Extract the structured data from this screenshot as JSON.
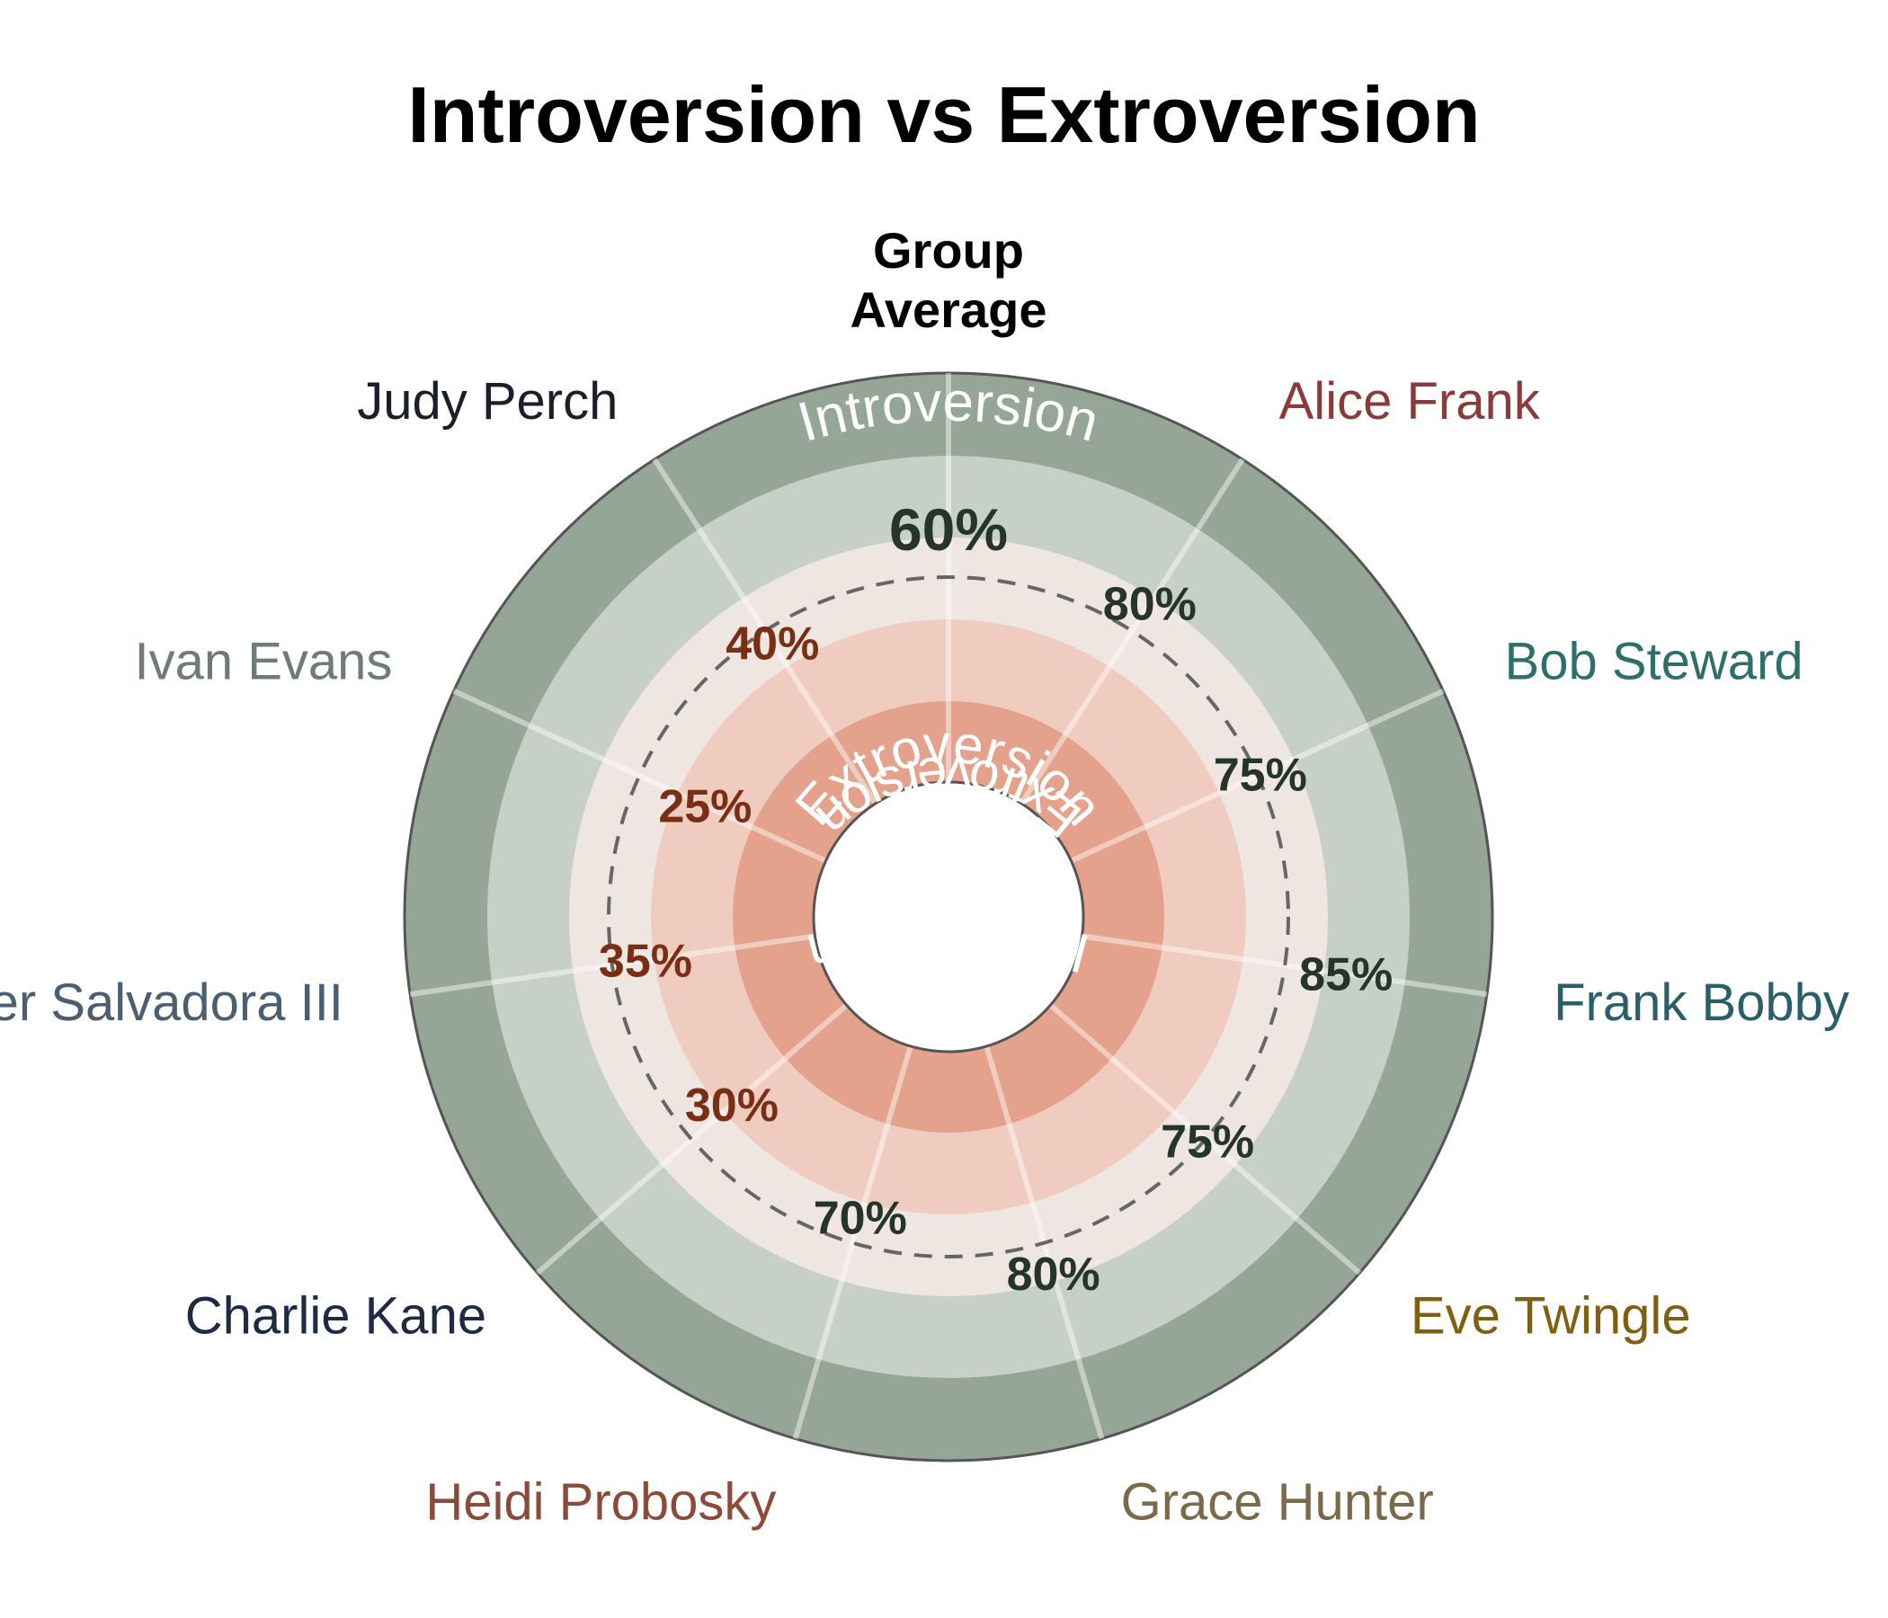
{
  "chart_data": {
    "type": "radial",
    "title": "Introversion vs Extroversion",
    "center_label_lines": [
      "Group",
      "Average"
    ],
    "group_average": 60,
    "group_average_label": "60%",
    "band_labels": {
      "introversion": "Introversion",
      "extroversion": "Extroversion"
    },
    "members": [
      {
        "name": "Alice Frank",
        "value": 80,
        "value_label": "80%",
        "side": "introversion",
        "color": "#8b3a3a"
      },
      {
        "name": "Bob Steward",
        "value": 75,
        "value_label": "75%",
        "side": "introversion",
        "color": "#2f6f6a"
      },
      {
        "name": "Frank Bobby",
        "value": 85,
        "value_label": "85%",
        "side": "introversion",
        "color": "#2a5f6a"
      },
      {
        "name": "Eve Twingle",
        "value": 75,
        "value_label": "75%",
        "side": "introversion",
        "color": "#806010"
      },
      {
        "name": "Grace Hunter",
        "value": 80,
        "value_label": "80%",
        "side": "introversion",
        "color": "#7a6a4a"
      },
      {
        "name": "Heidi Probosky",
        "value": 70,
        "value_label": "70%",
        "side": "introversion",
        "color": "#8b4a3a"
      },
      {
        "name": "Charlie Kane",
        "value": 30,
        "value_label": "30%",
        "side": "extroversion",
        "color": "#1f2a44"
      },
      {
        "name": "Peter Salvadora III",
        "value": 35,
        "value_label": "35%",
        "side": "extroversion",
        "color": "#4a5f72"
      },
      {
        "name": "Ivan Evans",
        "value": 25,
        "value_label": "25%",
        "side": "extroversion",
        "color": "#6f7a7a"
      },
      {
        "name": "Judy Perch",
        "value": 40,
        "value_label": "40%",
        "side": "extroversion",
        "color": "#1a1f2a"
      }
    ],
    "colors": {
      "outer_intro": "#95a596",
      "inner_intro": "#c6d0c7",
      "neutral": "#efe6e1",
      "outer_extro": "#f0cbbf",
      "inner_extro": "#e4a18c",
      "intro_value_text": "#25352a",
      "extro_value_text": "#7a2e14"
    }
  }
}
